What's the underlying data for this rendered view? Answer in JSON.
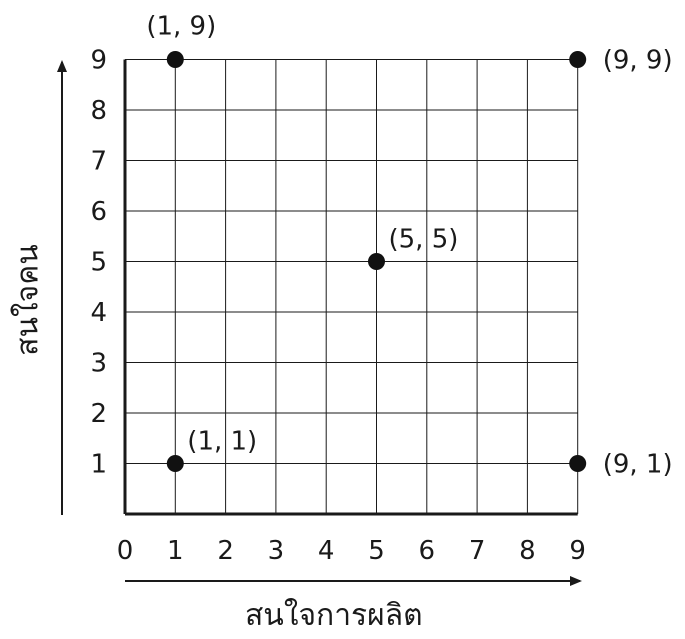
{
  "chart_data": {
    "type": "scatter",
    "xlabel": "สนใจการผลิต",
    "ylabel": "สนใจคน",
    "xlim": [
      0,
      9
    ],
    "ylim": [
      0,
      9
    ],
    "grid": true,
    "x_ticks": [
      "0",
      "1",
      "2",
      "3",
      "4",
      "5",
      "6",
      "7",
      "8",
      "9"
    ],
    "y_ticks": [
      "1",
      "2",
      "3",
      "4",
      "5",
      "6",
      "7",
      "8",
      "9"
    ],
    "points": [
      {
        "x": 1,
        "y": 9,
        "label": "(1, 9)"
      },
      {
        "x": 9,
        "y": 9,
        "label": "(9, 9)"
      },
      {
        "x": 5,
        "y": 5,
        "label": "(5, 5)"
      },
      {
        "x": 1,
        "y": 1,
        "label": "(1, 1)"
      },
      {
        "x": 9,
        "y": 1,
        "label": "(9, 1)"
      }
    ]
  }
}
